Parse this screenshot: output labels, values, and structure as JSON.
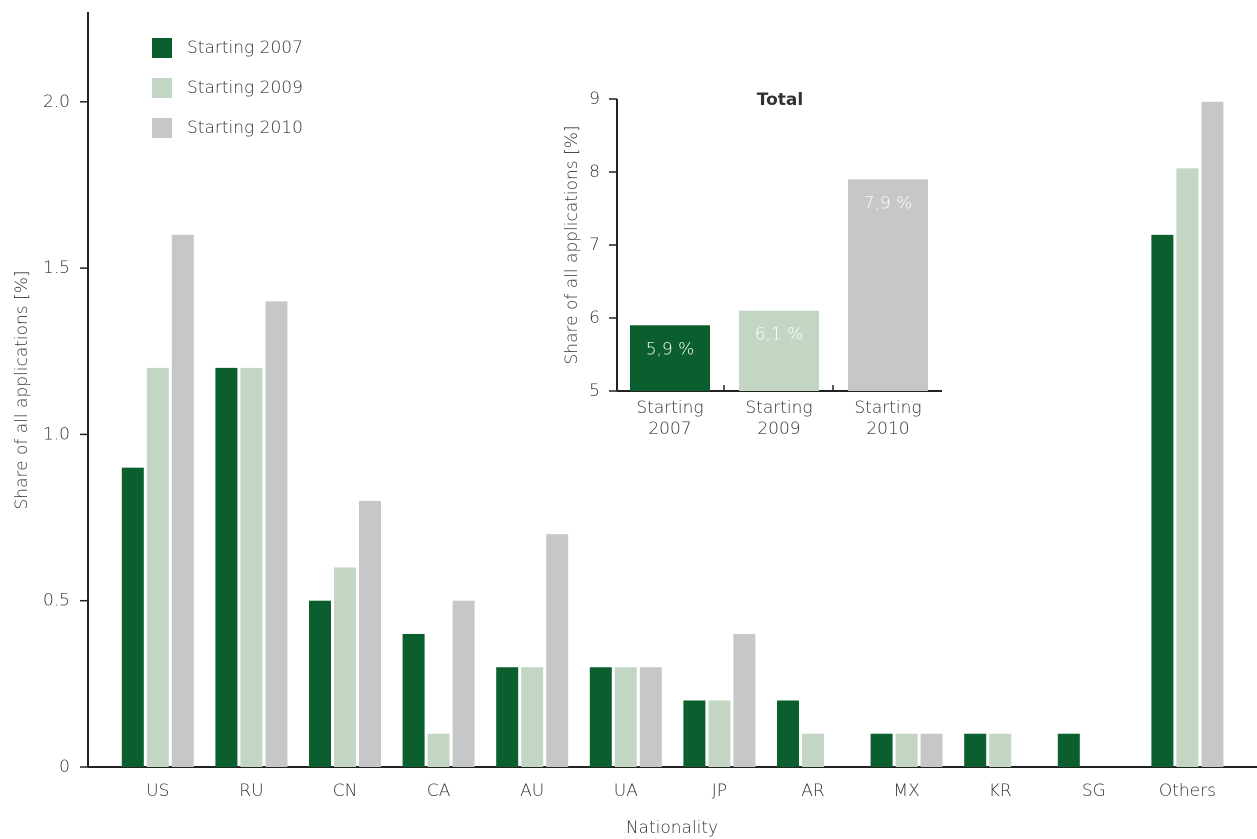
{
  "chart_data": [
    {
      "type": "grouped-bar",
      "x_label": "Nationality",
      "y_label": "Share of all applications [%]",
      "categories": [
        "US",
        "RU",
        "CN",
        "CA",
        "AU",
        "UA",
        "JP",
        "AR",
        "MX",
        "KR",
        "SG",
        "Others"
      ],
      "series": [
        {
          "name": "Starting 2007",
          "color": "#0b5f2f",
          "values": [
            0.9,
            1.2,
            0.5,
            0.4,
            0.3,
            0.3,
            0.2,
            0.2,
            0.1,
            0.1,
            0.1,
            1.6
          ]
        },
        {
          "name": "Starting 2009",
          "color": "#c3d6c3",
          "values": [
            1.2,
            1.2,
            0.6,
            0.1,
            0.3,
            0.3,
            0.2,
            0.1,
            0.1,
            0.1,
            0,
            1.8
          ]
        },
        {
          "name": "Starting 2010",
          "color": "#c6c7c9",
          "values": [
            1.6,
            1.4,
            0.8,
            0.5,
            0.7,
            0.3,
            0.4,
            0,
            0.1,
            0,
            0,
            2.0
          ]
        }
      ],
      "ylim": [
        0,
        2.27
      ],
      "yticks": [
        0,
        0.5,
        {
          "value": 1,
          "label": "1.0"
        },
        1.5,
        {
          "value": 2,
          "label": "2.0"
        }
      ],
      "legend": "top-left"
    },
    {
      "type": "bar",
      "title": "Total",
      "y_label": "Share of all applications [%]",
      "categories": [
        "Starting 2007",
        "Starting 2009",
        "Starting 2010"
      ],
      "values": [
        5.9,
        6.1,
        7.9
      ],
      "value_labels": [
        "5,9 %",
        "6,1 %",
        "7,9 %"
      ],
      "colors": [
        "#0b5f2f",
        "#c3d6c3",
        "#c6c7c9"
      ],
      "ylim": [
        5,
        9
      ],
      "yticks": [
        5,
        6,
        7,
        8,
        9
      ]
    }
  ]
}
